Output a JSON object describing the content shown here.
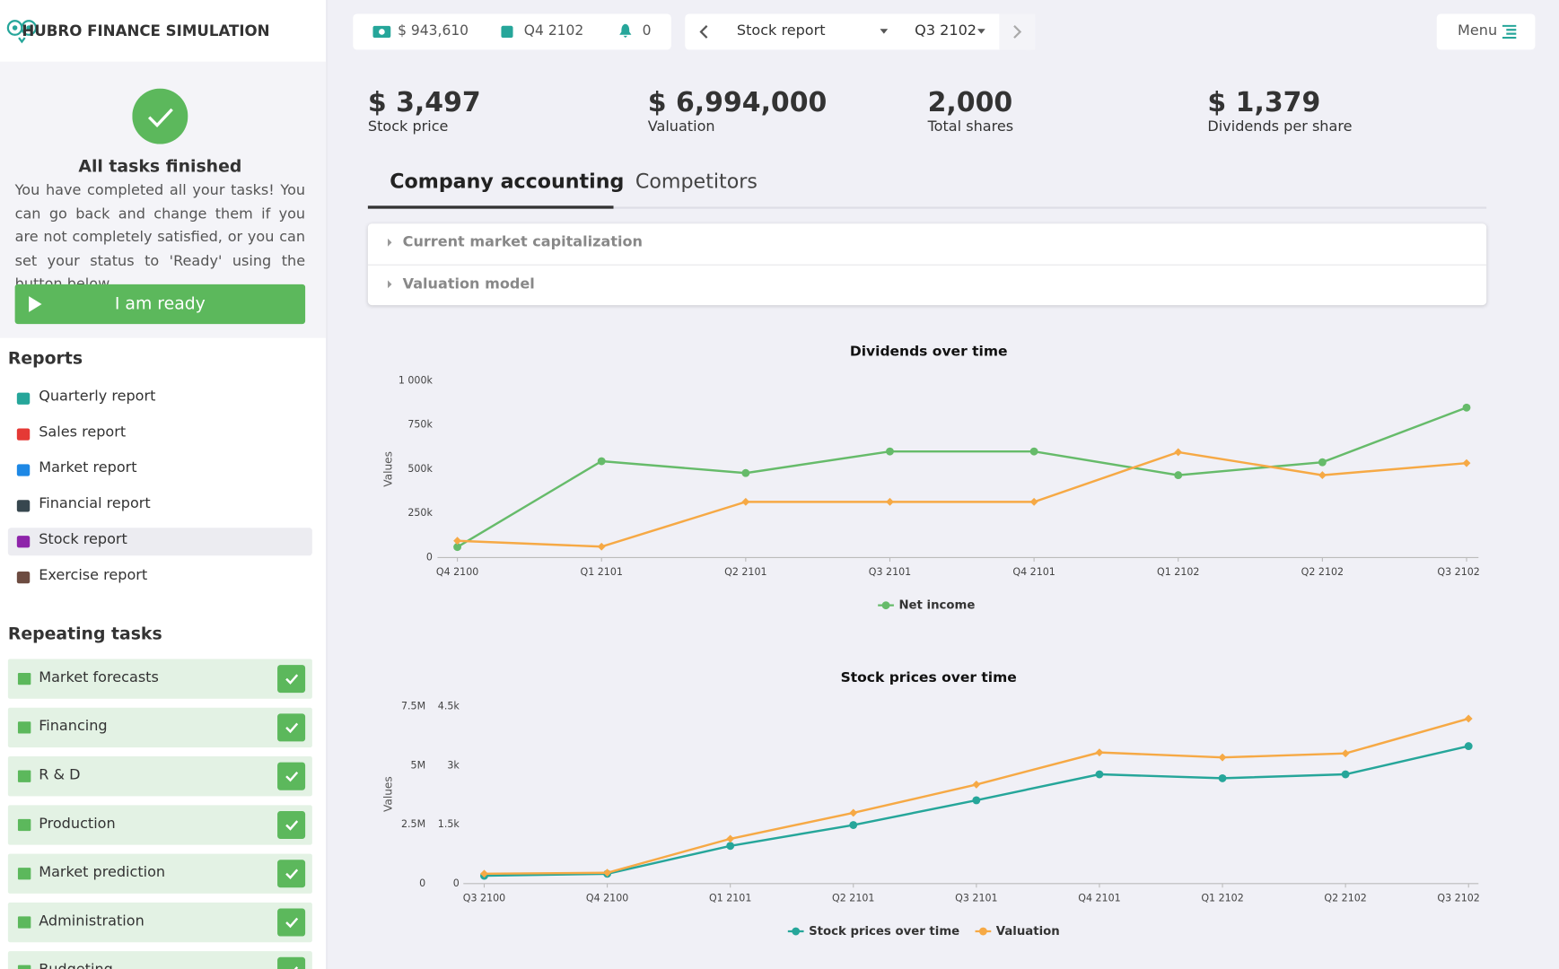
{
  "header": {
    "brand": "HUBRO FINANCE SIMULATION",
    "cash": "$ 943,610",
    "quarter": "Q4 2102",
    "notifications": "0",
    "report": "Stock report",
    "period": "Q3 2102",
    "menu": "Menu"
  },
  "tasks_card": {
    "title": "All tasks finished",
    "text": "You have completed all your tasks! You can go back and change them if you are not completely satisfied, or you can set your status to 'Ready' using the button below.",
    "button": "I am ready"
  },
  "reports": {
    "title": "Reports",
    "active": 4,
    "items": [
      {
        "label": "Quarterly report",
        "color": "#26a69a"
      },
      {
        "label": "Sales report",
        "color": "#e53935"
      },
      {
        "label": "Market report",
        "color": "#1e88e5"
      },
      {
        "label": "Financial report",
        "color": "#37474f"
      },
      {
        "label": "Stock report",
        "color": "#8e24aa"
      },
      {
        "label": "Exercise report",
        "color": "#6d4c41"
      }
    ]
  },
  "repeating_tasks": {
    "title": "Repeating tasks",
    "items": [
      "Market forecasts",
      "Financing",
      "R & D",
      "Production",
      "Market prediction",
      "Administration",
      "Budgeting"
    ]
  },
  "kpis": [
    {
      "value": "$ 3,497",
      "label": "Stock price"
    },
    {
      "value": "$ 6,994,000",
      "label": "Valuation"
    },
    {
      "value": "2,000",
      "label": "Total shares"
    },
    {
      "value": "$ 1,379",
      "label": "Dividends per share"
    }
  ],
  "tabs": [
    "Company accounting",
    "Competitors"
  ],
  "accordion": [
    "Current market capitalization",
    "Valuation model"
  ],
  "charts": [
    {
      "type": "line",
      "title": "Dividends over time",
      "ylabel": "Values",
      "categories": [
        "Q4 2100",
        "Q1 2101",
        "Q2 2101",
        "Q3 2101",
        "Q4 2101",
        "Q1 2102",
        "Q2 2102",
        "Q3 2102"
      ],
      "ylim": [
        0,
        1000000
      ],
      "yticks": [
        0,
        {
          "value": 250000,
          "label": "250k"
        },
        {
          "value": 500000,
          "label": "500k"
        },
        {
          "value": 750000,
          "label": "750k"
        },
        {
          "value": 1000000,
          "label": "1 000k"
        }
      ],
      "series": [
        {
          "name": "Net income",
          "color": "#66bb6a",
          "values": [
            60000,
            545000,
            478000,
            600000,
            600000,
            466000,
            539000,
            848000
          ]
        },
        {
          "color": "#f6a945",
          "values": [
            95000,
            62000,
            315000,
            315000,
            315000,
            596000,
            466000,
            534000
          ]
        }
      ]
    },
    {
      "type": "line",
      "title": "Stock prices over time",
      "ylabel": "Values",
      "categories": [
        "Q3 2100",
        "Q4 2100",
        "Q1 2101",
        "Q2 2101",
        "Q3 2101",
        "Q4 2101",
        "Q1 2102",
        "Q2 2102",
        "Q3 2102"
      ],
      "ylim": [
        0,
        7500000
      ],
      "yticks": [
        0,
        {
          "value": 2500000,
          "label": "2.5M"
        },
        {
          "value": 5000000,
          "label": "5M"
        },
        {
          "value": 7500000,
          "label": "7.5M"
        }
      ],
      "y2lim": [
        0,
        4500
      ],
      "y2ticks": [
        0,
        {
          "value": 1500,
          "label": "1.5k"
        },
        {
          "value": 3000,
          "label": "3k"
        },
        {
          "value": 4500,
          "label": "4.5k"
        }
      ],
      "series": [
        {
          "name": "Stock prices over time",
          "color": "#26a69a",
          "axis": "y2",
          "values": [
            200,
            250,
            960,
            1490,
            2120,
            2780,
            2680,
            2780,
            3497
          ]
        },
        {
          "name": "Valuation",
          "color": "#f6a945",
          "values": [
            420000,
            460000,
            1900000,
            3000000,
            4200000,
            5560000,
            5350000,
            5520000,
            6994000
          ]
        }
      ]
    }
  ]
}
